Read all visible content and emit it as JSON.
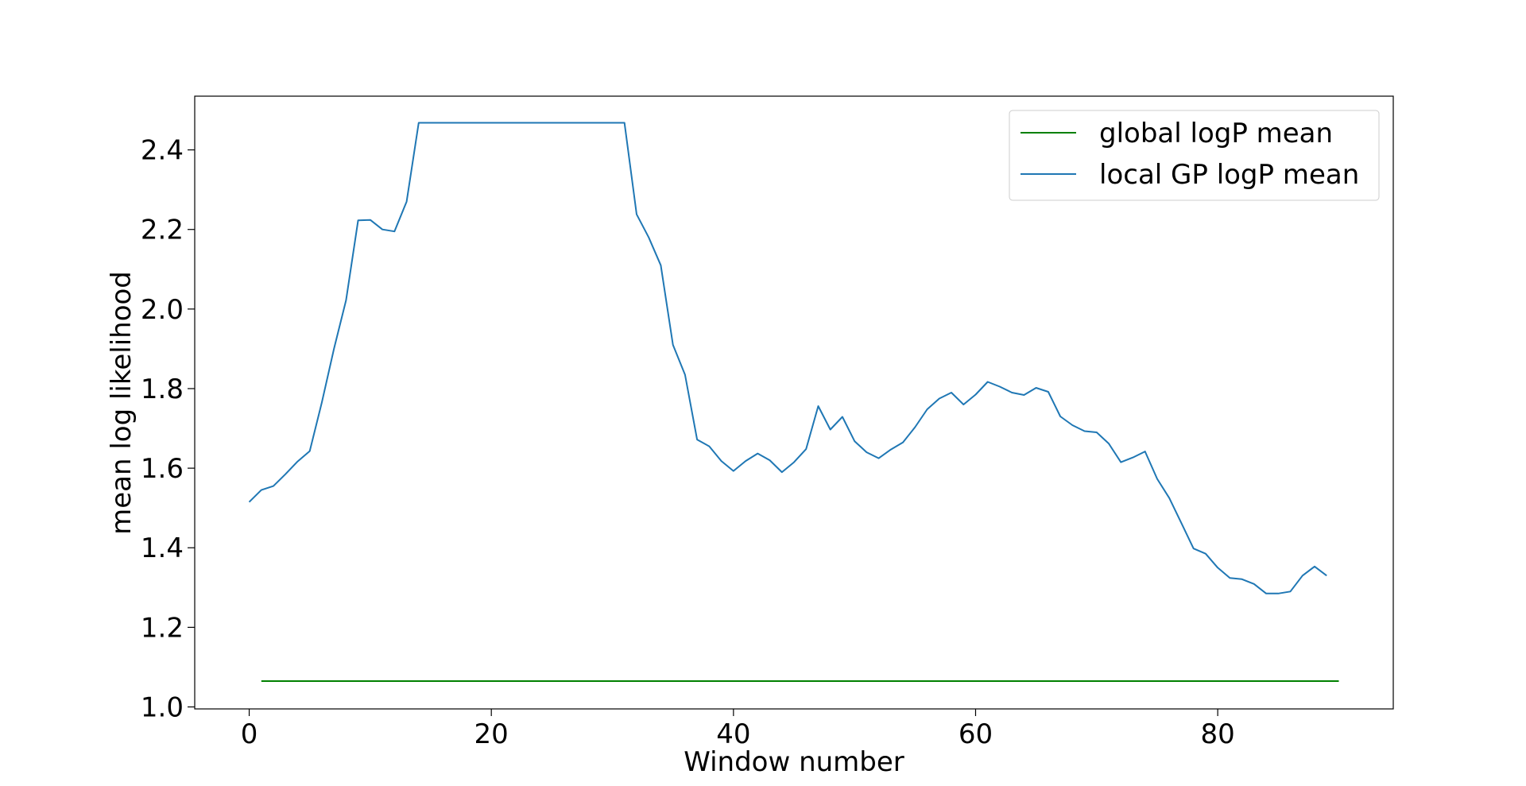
{
  "chart_data": {
    "type": "line",
    "title": "",
    "xlabel": "Window number",
    "ylabel": "mean log likelihood",
    "xlim": [
      -4.5,
      94.5
    ],
    "ylim": [
      0.995,
      2.535
    ],
    "x_ticks": [
      0,
      20,
      40,
      60,
      80
    ],
    "y_ticks": [
      1.0,
      1.2,
      1.4,
      1.6,
      1.8,
      2.0,
      2.2,
      2.4
    ],
    "x_tick_labels": [
      "0",
      "20",
      "40",
      "60",
      "80"
    ],
    "y_tick_labels": [
      "1.0",
      "1.2",
      "1.4",
      "1.6",
      "1.8",
      "2.0",
      "2.2",
      "2.4"
    ],
    "grid": false,
    "legend_position": "top-right",
    "series": [
      {
        "name": "global logP mean",
        "color": "#008000",
        "x": [
          1,
          90
        ],
        "y": [
          1.065,
          1.065
        ]
      },
      {
        "name": "local GP logP mean",
        "color": "#1f77b4",
        "x": [
          0,
          1,
          2,
          3,
          4,
          5,
          6,
          7,
          8,
          9,
          10,
          11,
          12,
          13,
          14,
          15,
          16,
          17,
          18,
          19,
          20,
          21,
          22,
          23,
          24,
          25,
          26,
          27,
          28,
          29,
          30,
          31,
          32,
          33,
          34,
          35,
          36,
          37,
          38,
          39,
          40,
          41,
          42,
          43,
          44,
          45,
          46,
          47,
          48,
          49,
          50,
          51,
          52,
          53,
          54,
          55,
          56,
          57,
          58,
          59,
          60,
          61,
          62,
          63,
          64,
          65,
          66,
          67,
          68,
          69,
          70,
          71,
          72,
          73,
          74,
          75,
          76,
          77,
          78,
          79,
          80,
          81,
          82,
          83,
          84,
          85,
          86,
          87,
          88,
          89
        ],
        "y": [
          1.515,
          1.545,
          1.555,
          1.585,
          1.617,
          1.643,
          1.765,
          1.9,
          2.022,
          2.223,
          2.224,
          2.2,
          2.195,
          2.27,
          2.468,
          2.468,
          2.468,
          2.468,
          2.468,
          2.468,
          2.468,
          2.468,
          2.468,
          2.468,
          2.468,
          2.468,
          2.468,
          2.468,
          2.468,
          2.468,
          2.468,
          2.468,
          2.238,
          2.18,
          2.11,
          1.91,
          1.835,
          1.672,
          1.655,
          1.618,
          1.593,
          1.618,
          1.637,
          1.62,
          1.59,
          1.615,
          1.648,
          1.756,
          1.697,
          1.729,
          1.668,
          1.64,
          1.625,
          1.647,
          1.665,
          1.703,
          1.748,
          1.775,
          1.79,
          1.76,
          1.785,
          1.817,
          1.805,
          1.79,
          1.784,
          1.802,
          1.792,
          1.73,
          1.708,
          1.693,
          1.69,
          1.662,
          1.615,
          1.627,
          1.642,
          1.573,
          1.525,
          1.462,
          1.398,
          1.385,
          1.35,
          1.324,
          1.321,
          1.309,
          1.285,
          1.285,
          1.29,
          1.33,
          1.353,
          1.33
        ]
      }
    ]
  }
}
